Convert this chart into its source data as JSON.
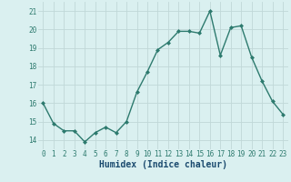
{
  "x": [
    0,
    1,
    2,
    3,
    4,
    5,
    6,
    7,
    8,
    9,
    10,
    11,
    12,
    13,
    14,
    15,
    16,
    17,
    18,
    19,
    20,
    21,
    22,
    23
  ],
  "y": [
    16.0,
    14.9,
    14.5,
    14.5,
    13.9,
    14.4,
    14.7,
    14.4,
    15.0,
    16.6,
    17.7,
    18.9,
    19.3,
    19.9,
    19.9,
    19.8,
    21.0,
    18.6,
    20.1,
    20.2,
    18.5,
    17.2,
    16.1,
    15.4
  ],
  "line_color": "#2d7a6e",
  "marker": "D",
  "marker_size": 2.0,
  "bg_color": "#daf0f0",
  "grid_color": "#c0d8d8",
  "xlabel": "Humidex (Indice chaleur)",
  "xlim": [
    -0.5,
    23.5
  ],
  "ylim": [
    13.5,
    21.5
  ],
  "yticks": [
    14,
    15,
    16,
    17,
    18,
    19,
    20,
    21
  ],
  "xticks": [
    0,
    1,
    2,
    3,
    4,
    5,
    6,
    7,
    8,
    9,
    10,
    11,
    12,
    13,
    14,
    15,
    16,
    17,
    18,
    19,
    20,
    21,
    22,
    23
  ],
  "tick_color": "#2d7a6e",
  "xlabel_color": "#1a4a6e",
  "linewidth": 1.0,
  "tick_fontsize": 5.5,
  "xlabel_fontsize": 7.0
}
